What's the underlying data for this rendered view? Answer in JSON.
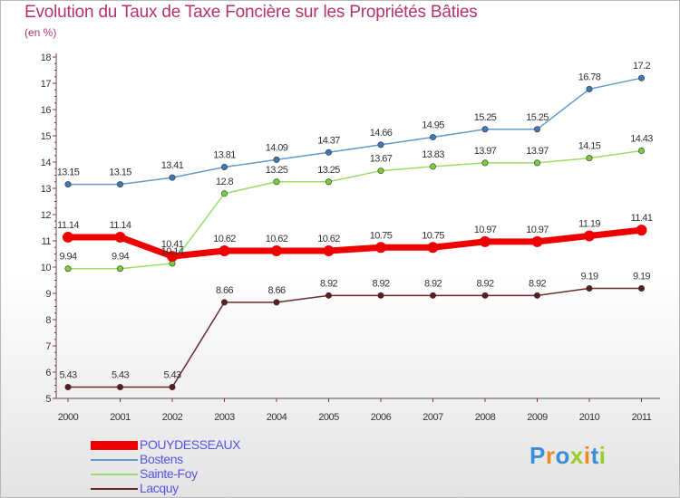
{
  "chart_data": {
    "type": "line",
    "title": "Evolution du Taux de Taxe Foncière sur les Propriétés Bâties",
    "ylabel": "(en %)",
    "xlabel": "",
    "categories": [
      "2000",
      "2001",
      "2002",
      "2003",
      "2004",
      "2005",
      "2006",
      "2007",
      "2008",
      "2009",
      "2010",
      "2011"
    ],
    "ylim": [
      5,
      18
    ],
    "yticks": [
      "5",
      "6",
      "7",
      "8",
      "9",
      "10",
      "11",
      "12",
      "13",
      "14",
      "15",
      "16",
      "17",
      "18"
    ],
    "grid": false,
    "legend_position": "bottom-left",
    "series": [
      {
        "name": "Bostens",
        "color": "#6699cc",
        "marker": "#3d78b8",
        "values": [
          13.15,
          13.15,
          13.41,
          13.81,
          14.09,
          14.37,
          14.66,
          14.95,
          15.25,
          15.25,
          16.78,
          17.2
        ],
        "labels": [
          "13.15",
          "13.15",
          "13.41",
          "13.81",
          "14.09",
          "14.37",
          "14.66",
          "14.95",
          "15.25",
          "15.25",
          "16.78",
          "17.2"
        ]
      },
      {
        "name": "Sainte-Foy",
        "color": "#99dd66",
        "marker": "#7acc3a",
        "values": [
          9.94,
          9.94,
          10.14,
          12.8,
          13.25,
          13.25,
          13.67,
          13.83,
          13.97,
          13.97,
          14.15,
          14.43
        ],
        "labels": [
          "9.94",
          "9.94",
          "10.14",
          "12.8",
          "13.25",
          "13.25",
          "13.67",
          "13.83",
          "13.97",
          "13.97",
          "14.15",
          "14.43"
        ]
      },
      {
        "name": "Lacquy",
        "color": "#6b2a2a",
        "marker": "#5a1c1c",
        "values": [
          5.43,
          5.43,
          5.43,
          8.66,
          8.66,
          8.92,
          8.92,
          8.92,
          8.92,
          8.92,
          9.19,
          9.19
        ],
        "labels": [
          "5.43",
          "5.43",
          "5.43",
          "8.66",
          "8.66",
          "8.92",
          "8.92",
          "8.92",
          "8.92",
          "8.92",
          "9.19",
          "9.19"
        ]
      },
      {
        "name": "POUYDESSEAUX",
        "color": "#ee0000",
        "marker": "#ee0000",
        "values": [
          11.14,
          11.14,
          10.41,
          10.62,
          10.62,
          10.62,
          10.75,
          10.75,
          10.97,
          10.97,
          11.19,
          11.41
        ],
        "labels": [
          "11.14",
          "11.14",
          "10.41",
          "10.62",
          "10.62",
          "10.62",
          "10.75",
          "10.75",
          "10.97",
          "10.97",
          "11.19",
          "11.41"
        ]
      }
    ]
  },
  "legend": {
    "items": [
      {
        "label": "POUYDESSEAUX",
        "color": "#ee0000",
        "text_color": "#5555dd"
      },
      {
        "label": "Bostens",
        "color": "#6699cc",
        "text_color": "#5555dd"
      },
      {
        "label": "Sainte-Foy",
        "color": "#99dd66",
        "text_color": "#5555dd"
      },
      {
        "label": "Lacquy",
        "color": "#6b2a2a",
        "text_color": "#5555dd"
      }
    ]
  },
  "logo": {
    "letters": [
      {
        "char": "P",
        "color": "#3a8fd8"
      },
      {
        "char": "r",
        "color": "#f08a1c"
      },
      {
        "char": "o",
        "color": "#3a8fd8"
      },
      {
        "char": "x",
        "color": "#9bcc2a"
      },
      {
        "char": "i",
        "color": "#f08a1c"
      },
      {
        "char": "t",
        "color": "#3a8fd8"
      },
      {
        "char": "i",
        "color": "#9bcc2a"
      }
    ]
  }
}
